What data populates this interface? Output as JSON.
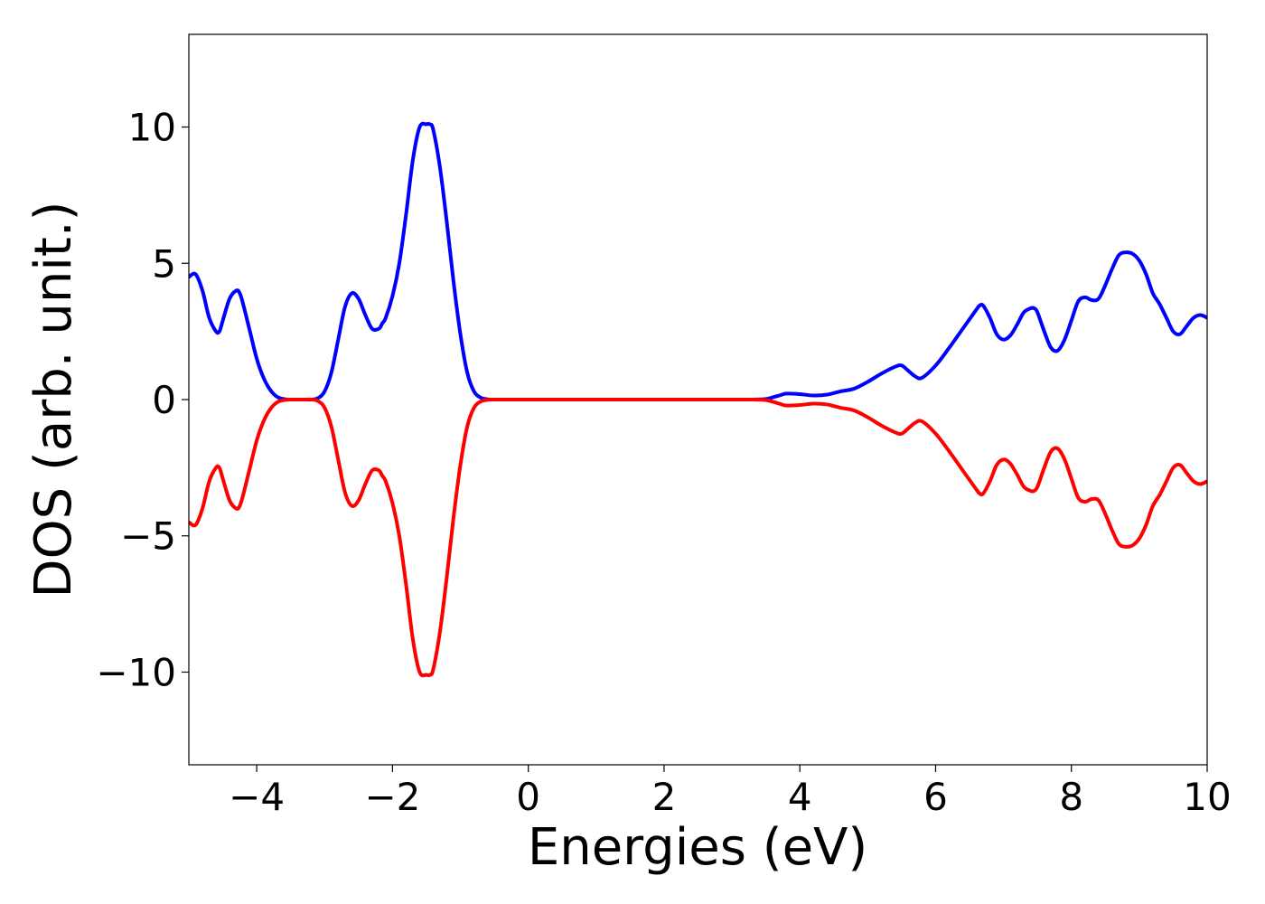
{
  "chart_data": {
    "type": "line",
    "title": "",
    "xlabel": "Energies (eV)",
    "ylabel": "DOS (arb. unit.)",
    "xlim": [
      -5,
      10
    ],
    "ylim": [
      -13.4,
      13.4
    ],
    "grid": false,
    "legend": "none",
    "x_ticks": [
      -4,
      -2,
      0,
      2,
      4,
      6,
      8,
      10
    ],
    "x_tick_labels": [
      "−4",
      "−2",
      "0",
      "2",
      "4",
      "6",
      "8",
      "10"
    ],
    "y_ticks": [
      -10,
      -5,
      0,
      5,
      10
    ],
    "y_tick_labels": [
      "−10",
      "−5",
      "0",
      "5",
      "10"
    ],
    "series": [
      {
        "color": "#0000ff",
        "x": [
          -5.0,
          -4.9,
          -4.8,
          -4.7,
          -4.6,
          -4.55,
          -4.5,
          -4.4,
          -4.3,
          -4.25,
          -4.2,
          -4.1,
          -4.0,
          -3.9,
          -3.8,
          -3.7,
          -3.6,
          -3.5,
          -3.4,
          -3.3,
          -3.2,
          -3.1,
          -3.0,
          -2.9,
          -2.8,
          -2.7,
          -2.6,
          -2.5,
          -2.4,
          -2.3,
          -2.2,
          -2.15,
          -2.1,
          -2.0,
          -1.9,
          -1.8,
          -1.7,
          -1.6,
          -1.5,
          -1.45,
          -1.4,
          -1.3,
          -1.2,
          -1.1,
          -1.0,
          -0.9,
          -0.8,
          -0.7,
          -0.6,
          -0.5,
          0.0,
          1.0,
          2.0,
          3.0,
          3.3,
          3.5,
          3.6,
          3.7,
          3.8,
          4.0,
          4.2,
          4.4,
          4.6,
          4.8,
          5.0,
          5.2,
          5.4,
          5.5,
          5.6,
          5.7,
          5.8,
          6.0,
          6.2,
          6.4,
          6.6,
          6.65,
          6.7,
          6.8,
          6.9,
          7.0,
          7.1,
          7.2,
          7.3,
          7.4,
          7.45,
          7.5,
          7.6,
          7.7,
          7.8,
          7.9,
          8.0,
          8.1,
          8.2,
          8.3,
          8.4,
          8.5,
          8.6,
          8.7,
          8.8,
          8.9,
          9.0,
          9.1,
          9.2,
          9.3,
          9.4,
          9.5,
          9.6,
          9.7,
          9.8,
          9.9,
          10.0
        ],
        "y": [
          4.5,
          4.6,
          4.0,
          3.0,
          2.5,
          2.5,
          2.9,
          3.7,
          4.0,
          3.9,
          3.5,
          2.5,
          1.5,
          0.8,
          0.35,
          0.1,
          0.02,
          0.0,
          0.0,
          0.0,
          0.0,
          0.05,
          0.3,
          1.0,
          2.2,
          3.4,
          3.9,
          3.7,
          3.1,
          2.6,
          2.6,
          2.8,
          3.0,
          3.8,
          5.0,
          6.8,
          8.8,
          10.0,
          10.1,
          10.1,
          9.9,
          8.5,
          6.5,
          4.3,
          2.4,
          1.0,
          0.3,
          0.07,
          0.01,
          0.0,
          0.0,
          0.0,
          0.0,
          0.0,
          0.0,
          0.02,
          0.08,
          0.15,
          0.22,
          0.2,
          0.15,
          0.18,
          0.3,
          0.4,
          0.65,
          0.95,
          1.2,
          1.25,
          1.05,
          0.85,
          0.8,
          1.25,
          1.9,
          2.6,
          3.3,
          3.45,
          3.45,
          3.0,
          2.4,
          2.2,
          2.35,
          2.75,
          3.2,
          3.35,
          3.35,
          3.2,
          2.5,
          1.9,
          1.8,
          2.2,
          2.9,
          3.6,
          3.75,
          3.65,
          3.7,
          4.2,
          4.8,
          5.3,
          5.4,
          5.35,
          5.1,
          4.6,
          3.9,
          3.5,
          3.0,
          2.5,
          2.4,
          2.7,
          3.0,
          3.1,
          3.0
        ]
      },
      {
        "color": "#ff0000",
        "x": [
          -5.0,
          -4.9,
          -4.8,
          -4.7,
          -4.6,
          -4.55,
          -4.5,
          -4.4,
          -4.3,
          -4.25,
          -4.2,
          -4.1,
          -4.0,
          -3.9,
          -3.8,
          -3.7,
          -3.6,
          -3.5,
          -3.4,
          -3.3,
          -3.2,
          -3.1,
          -3.0,
          -2.9,
          -2.8,
          -2.7,
          -2.6,
          -2.5,
          -2.4,
          -2.3,
          -2.2,
          -2.15,
          -2.1,
          -2.0,
          -1.9,
          -1.8,
          -1.7,
          -1.6,
          -1.5,
          -1.45,
          -1.4,
          -1.3,
          -1.2,
          -1.1,
          -1.0,
          -0.9,
          -0.8,
          -0.7,
          -0.6,
          -0.5,
          0.0,
          1.0,
          2.0,
          3.0,
          3.3,
          3.5,
          3.6,
          3.7,
          3.8,
          4.0,
          4.2,
          4.4,
          4.6,
          4.8,
          5.0,
          5.2,
          5.4,
          5.5,
          5.6,
          5.7,
          5.8,
          6.0,
          6.2,
          6.4,
          6.6,
          6.65,
          6.7,
          6.8,
          6.9,
          7.0,
          7.1,
          7.2,
          7.3,
          7.4,
          7.45,
          7.5,
          7.6,
          7.7,
          7.8,
          7.9,
          8.0,
          8.1,
          8.2,
          8.3,
          8.4,
          8.5,
          8.6,
          8.7,
          8.8,
          8.9,
          9.0,
          9.1,
          9.2,
          9.3,
          9.4,
          9.5,
          9.6,
          9.7,
          9.8,
          9.9,
          10.0
        ],
        "y": [
          -4.5,
          -4.6,
          -4.0,
          -3.0,
          -2.5,
          -2.5,
          -2.9,
          -3.7,
          -4.0,
          -3.9,
          -3.5,
          -2.5,
          -1.5,
          -0.8,
          -0.35,
          -0.1,
          -0.02,
          0.0,
          0.0,
          0.0,
          0.0,
          -0.05,
          -0.3,
          -1.0,
          -2.2,
          -3.4,
          -3.9,
          -3.7,
          -3.1,
          -2.6,
          -2.6,
          -2.8,
          -3.0,
          -3.8,
          -5.0,
          -6.8,
          -8.8,
          -10.0,
          -10.1,
          -10.1,
          -9.9,
          -8.5,
          -6.5,
          -4.3,
          -2.4,
          -1.0,
          -0.3,
          -0.07,
          -0.01,
          0.0,
          0.0,
          0.0,
          0.0,
          0.0,
          0.0,
          -0.02,
          -0.08,
          -0.15,
          -0.22,
          -0.2,
          -0.15,
          -0.18,
          -0.3,
          -0.4,
          -0.65,
          -0.95,
          -1.2,
          -1.25,
          -1.05,
          -0.85,
          -0.8,
          -1.25,
          -1.9,
          -2.6,
          -3.3,
          -3.45,
          -3.45,
          -3.0,
          -2.4,
          -2.2,
          -2.35,
          -2.75,
          -3.2,
          -3.35,
          -3.35,
          -3.2,
          -2.5,
          -1.9,
          -1.8,
          -2.2,
          -2.9,
          -3.6,
          -3.75,
          -3.65,
          -3.7,
          -4.2,
          -4.8,
          -5.3,
          -5.4,
          -5.35,
          -5.1,
          -4.6,
          -3.9,
          -3.5,
          -3.0,
          -2.5,
          -2.4,
          -2.7,
          -3.0,
          -3.1,
          -3.0
        ]
      }
    ]
  }
}
